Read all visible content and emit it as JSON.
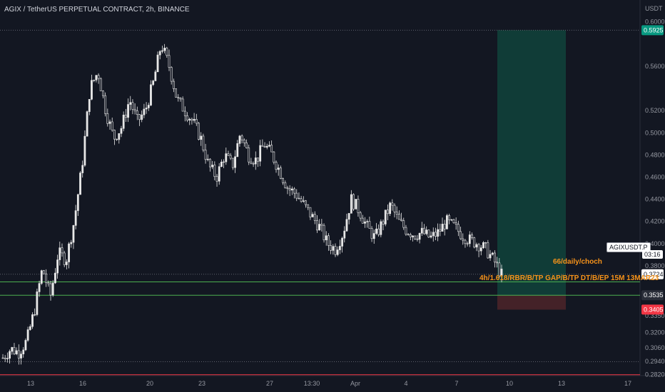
{
  "header": {
    "title": "AGIX / TetherUS PERPETUAL CONTRACT, 2h, BINANCE",
    "unit": "USDT"
  },
  "colors": {
    "background": "#131722",
    "candle": "#e8e8e8",
    "green_line": "#4caf50",
    "red_line": "#f23645",
    "zone": "#11403a",
    "orange": "#f7931a"
  },
  "chart_data": {
    "type": "candlestick",
    "ylim": [
      0.281,
      0.603
    ],
    "y_ticks": [
      "0.6000",
      "0.5600",
      "0.5200",
      "0.5000",
      "0.4800",
      "0.4600",
      "0.4400",
      "0.4200",
      "0.4000",
      "0.3800",
      "0.3350",
      "0.3200",
      "0.3060",
      "0.2940",
      "0.2820"
    ],
    "x_ticks": [
      "13",
      "16",
      "20",
      "23",
      "27",
      "13:30",
      "Apr",
      "4",
      "7",
      "10",
      "13",
      "17"
    ],
    "close_path": [
      0.297,
      0.305,
      0.302,
      0.312,
      0.34,
      0.378,
      0.352,
      0.392,
      0.385,
      0.42,
      0.47,
      0.54,
      0.555,
      0.52,
      0.495,
      0.505,
      0.53,
      0.51,
      0.52,
      0.545,
      0.58,
      0.56,
      0.53,
      0.52,
      0.51,
      0.495,
      0.47,
      0.46,
      0.48,
      0.47,
      0.5,
      0.48,
      0.475,
      0.49,
      0.48,
      0.465,
      0.45,
      0.445,
      0.435,
      0.425,
      0.415,
      0.4,
      0.395,
      0.41,
      0.44,
      0.43,
      0.415,
      0.405,
      0.42,
      0.435,
      0.42,
      0.412,
      0.408,
      0.41,
      0.405,
      0.41,
      0.42,
      0.415,
      0.408,
      0.403,
      0.4,
      0.395,
      0.385,
      0.372
    ],
    "levels": [
      {
        "label": "66/daily/choch",
        "value": 0.3655
      },
      {
        "label": "4h/1.618/RBR/B/TP GAP/B/TP DT/B/EP 15M 13MAR23",
        "value": 0.3535
      }
    ],
    "horizontal_lines": [
      0.5925,
      0.3724,
      0.2935,
      0.2818
    ],
    "long_position": {
      "entry": 0.3535,
      "target": 0.5925,
      "stop": 0.3405
    },
    "price_tags": [
      {
        "label": "0.5925",
        "value": 0.5925,
        "bg": "#089981"
      },
      {
        "label": "0.3724",
        "value": 0.3724,
        "bg": "#ffffff"
      },
      {
        "label": "0.3535",
        "value": 0.3535,
        "bg": "#2a2e39"
      },
      {
        "label": "0.3405",
        "value": 0.3405,
        "bg": "#f23645"
      }
    ],
    "symbol_tag": "AGIXUSDT.P",
    "countdown": "03:16",
    "grid": false
  }
}
